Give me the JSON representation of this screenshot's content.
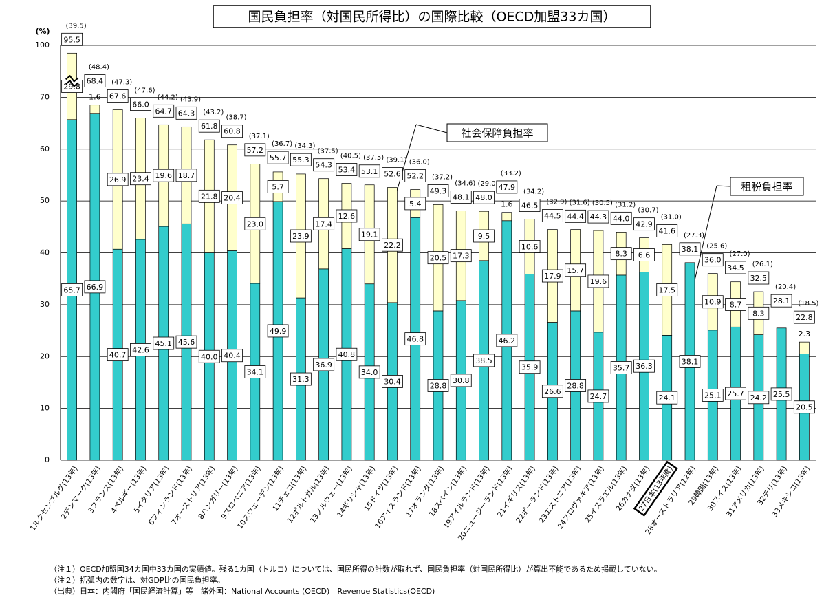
{
  "chart_data": {
    "type": "stacked_bar",
    "title": "国民負担率（対国民所得比）の国際比較（OECD加盟33カ国）",
    "y_unit": "(%)",
    "categories": [
      "1ルクセンブルグ(13年)",
      "2デンマーク(13年)",
      "3フランス(13年)",
      "4ベルギー(13年)",
      "5イタリア(13年)",
      "6フィンランド(13年)",
      "7オーストリア(13年)",
      "8ハンガリー(13年)",
      "9スロベニア(13年)",
      "10スウェーデン(13年)",
      "11チェコ(13年)",
      "12ポルトガル(13年)",
      "13ノルウェー(13年)",
      "14ギリシャ(13年)",
      "15ドイツ(13年)",
      "16アイスランド(13年)",
      "17オランダ(13年)",
      "18スペイン(13年)",
      "19アイルランド(13年)",
      "20ニュージーランド(13年)",
      "21イギリス(13年)",
      "22ポーランド(13年)",
      "23エストニア(13年)",
      "24スロヴァキア(13年)",
      "25イスラエル(13年)",
      "26カナダ(13年)",
      "27日本(13年度)",
      "28オーストラリア(12年)",
      "29韓国(13年)",
      "30スイス(13年)",
      "31アメリカ(13年)",
      "32チリ(13年)",
      "33メキシコ(13年)"
    ],
    "series": [
      {
        "name": "租税負担率",
        "color": "#33cccc",
        "values": [
          65.7,
          66.9,
          40.7,
          42.6,
          45.1,
          45.6,
          40.0,
          40.4,
          34.1,
          49.9,
          31.3,
          36.9,
          40.8,
          34.0,
          30.4,
          46.8,
          28.8,
          30.8,
          38.5,
          46.2,
          35.9,
          26.6,
          28.8,
          24.7,
          35.7,
          36.3,
          24.1,
          38.1,
          25.1,
          25.7,
          24.2,
          25.5,
          20.5
        ],
        "value_labels": [
          "65.7",
          "66.9",
          "40.7",
          "42.6",
          "45.1",
          "45.6",
          "40.0",
          "40.4",
          "34.1",
          "49.9",
          "31.3",
          "36.9",
          "40.8",
          "34.0",
          "30.4",
          "46.8",
          "28.8",
          "30.8",
          "38.5",
          "46.2",
          "35.9",
          "26.6",
          "28.8",
          "24.7",
          "35.7",
          "36.3",
          "24.1",
          "38.1",
          "25.1",
          "25.7",
          "24.2",
          "25.5",
          "20.5"
        ]
      },
      {
        "name": "社会保障負担率",
        "color": "#ffffcc",
        "values": [
          29.8,
          1.6,
          26.9,
          23.4,
          19.6,
          18.7,
          21.8,
          20.4,
          23.0,
          5.7,
          23.9,
          17.4,
          12.6,
          19.1,
          22.2,
          5.4,
          20.5,
          17.3,
          9.5,
          1.6,
          10.6,
          17.9,
          15.7,
          19.6,
          8.3,
          6.6,
          17.5,
          null,
          10.9,
          8.7,
          8.3,
          null,
          2.3
        ],
        "value_labels": [
          "29.8",
          "1.6",
          "26.9",
          "23.4",
          "19.6",
          "18.7",
          "21.8",
          "20.4",
          "23.0",
          "5.7",
          "23.9",
          "17.4",
          "12.6",
          "19.1",
          "22.2",
          "5.4",
          "20.5",
          "17.3",
          "9.5",
          "1.6",
          "10.6",
          "17.9",
          "15.7",
          "19.6",
          "8.3",
          "6.6",
          "17.5",
          null,
          "10.9",
          "8.7",
          "8.3",
          null,
          "2.3"
        ]
      }
    ],
    "totals": {
      "values": [
        95.5,
        68.4,
        67.6,
        66.0,
        64.7,
        64.3,
        61.8,
        60.8,
        57.2,
        55.7,
        55.3,
        54.3,
        53.4,
        53.1,
        52.6,
        52.2,
        49.3,
        48.1,
        48.0,
        47.9,
        46.5,
        44.5,
        44.4,
        44.3,
        44.0,
        42.9,
        41.6,
        38.1,
        36.0,
        34.5,
        32.5,
        28.1,
        22.8
      ],
      "value_labels": [
        "95.5",
        "68.4",
        "67.6",
        "66.0",
        "64.7",
        "64.3",
        "61.8",
        "60.8",
        "57.2",
        "55.7",
        "55.3",
        "54.3",
        "53.4",
        "53.1",
        "52.6",
        "52.2",
        "49.3",
        "48.1",
        "48.0",
        "47.9",
        "46.5",
        "44.5",
        "44.4",
        "44.3",
        "44.0",
        "42.9",
        "41.6",
        "38.1",
        "36.0",
        "34.5",
        "32.5",
        "28.1",
        "22.8"
      ]
    },
    "gdp_ratio": {
      "values": [
        39.5,
        48.4,
        47.3,
        47.6,
        44.2,
        43.9,
        43.2,
        38.7,
        37.1,
        36.7,
        34.3,
        37.5,
        40.5,
        37.5,
        39.1,
        36.0,
        37.2,
        34.6,
        29.0,
        33.2,
        34.2,
        32.9,
        31.6,
        30.5,
        31.2,
        30.7,
        31.0,
        27.3,
        25.6,
        27.0,
        26.1,
        20.4,
        18.5
      ],
      "value_labels": [
        "(39.5)",
        "(48.4)",
        "(47.3)",
        "(47.6)",
        "(44.2)",
        "(43.9)",
        "(43.2)",
        "(38.7)",
        "(37.1)",
        "(36.7)",
        "(34.3)",
        "(37.5)",
        "(40.5)",
        "(37.5)",
        "(39.1)",
        "(36.0)",
        "(37.2)",
        "(34.6)",
        "(29.0)",
        "(33.2)",
        "(34.2)",
        "(32.9)",
        "(31.6)",
        "(30.5)",
        "(31.2)",
        "(30.7)",
        "(31.0)",
        "(27.3)",
        "(25.6)",
        "(27.0)",
        "(26.1)",
        "(20.4)",
        "(18.5)"
      ]
    },
    "ylim": [
      0,
      100
    ],
    "yticks": [
      0,
      10,
      20,
      30,
      40,
      50,
      60,
      70,
      100
    ],
    "y_break": [
      70,
      100
    ],
    "grid": true,
    "highlight": 26,
    "notes": [
      "（注１）OECD加盟国34カ国中33カ国の実績値。残る1カ国（トルコ）については、国民所得の計数が取れず、国民負担率（対国民所得比）が算出不能であるため掲載していない。",
      "（注２）括弧内の数字は、対GDP比の国民負担率。",
      "（出典）日本：内閣府「国民経済計算」等　諸外国：National Accounts (OECD)　Revenue Statistics(OECD)"
    ]
  }
}
